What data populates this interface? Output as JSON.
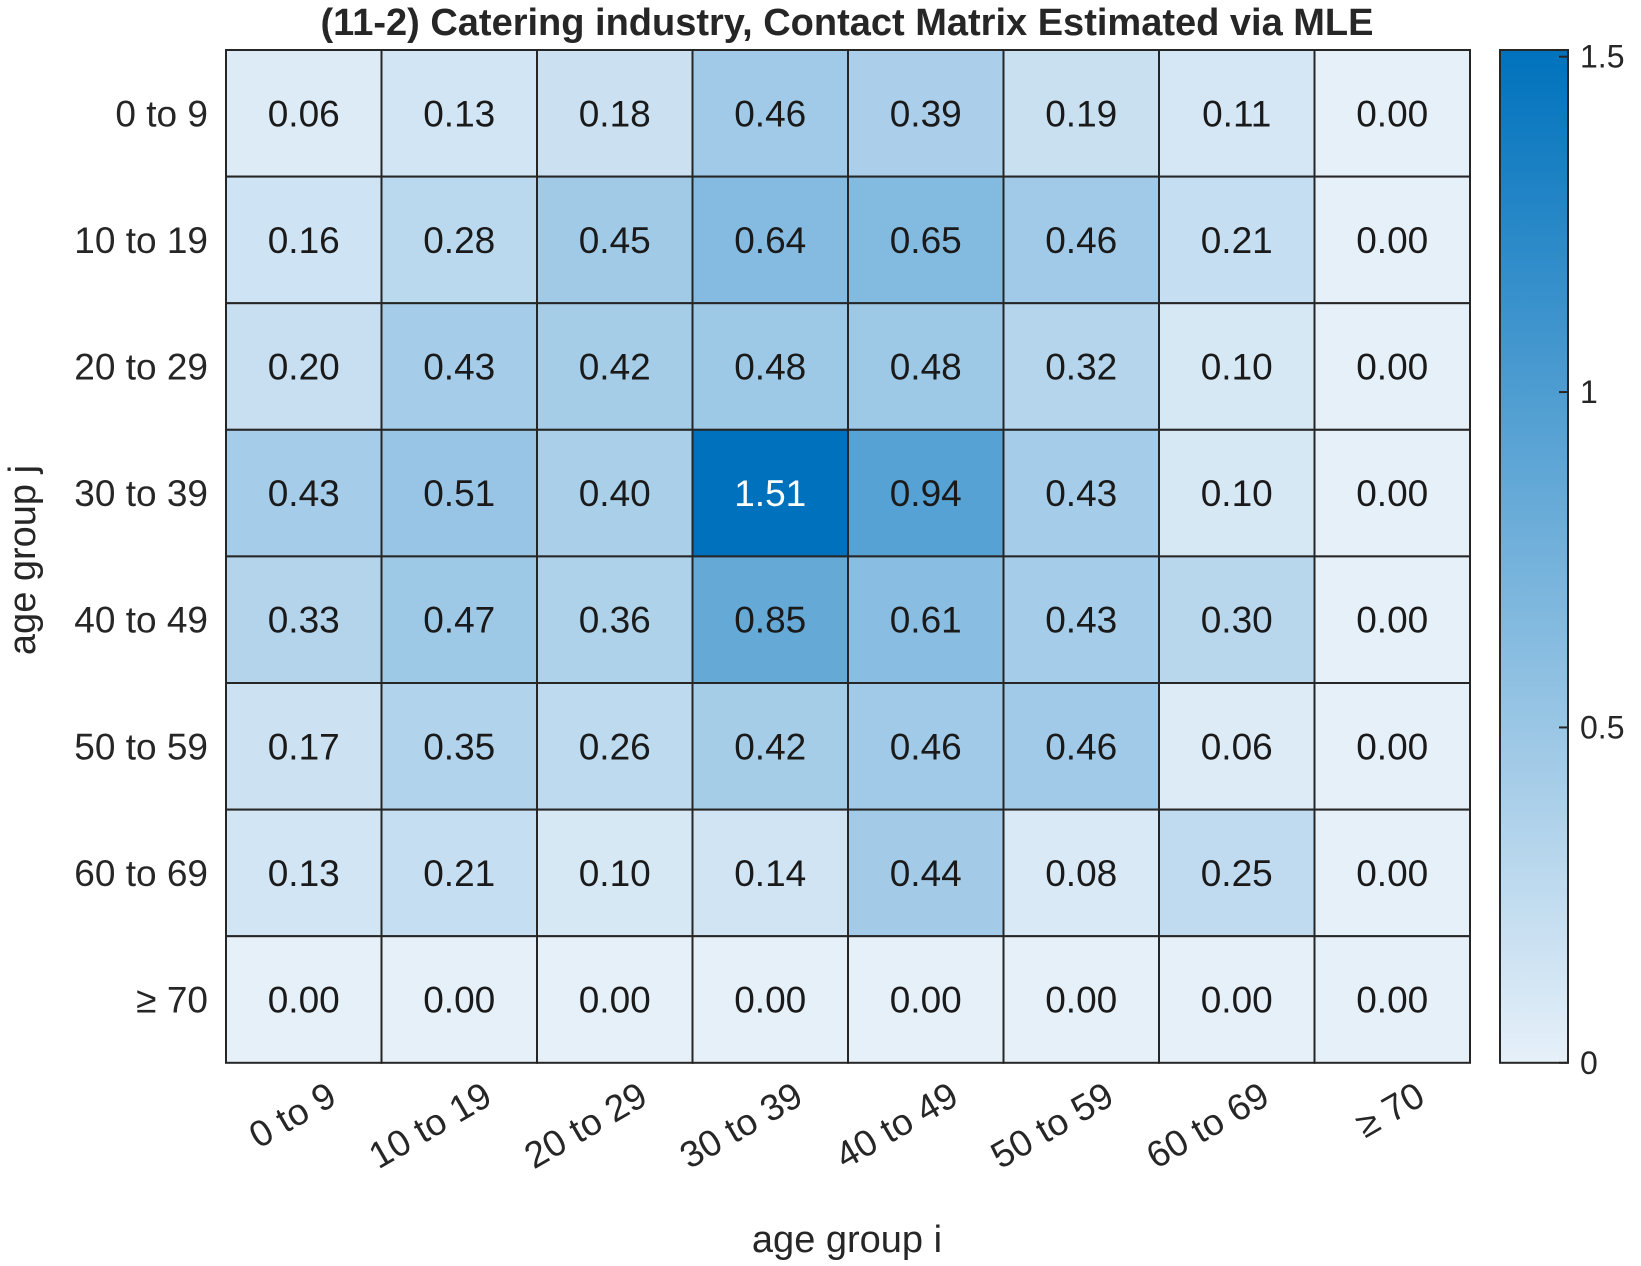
{
  "chart_data": {
    "type": "heatmap",
    "title": "(11-2) Catering industry, Contact Matrix Estimated via MLE",
    "xlabel": "age group i",
    "ylabel": "age group j",
    "x_categories": [
      "0 to 9",
      "10 to 19",
      "20 to 29",
      "30 to 39",
      "40 to 49",
      "50 to 59",
      "60 to 69",
      "≥ 70"
    ],
    "y_categories": [
      "0 to 9",
      "10 to 19",
      "20 to 29",
      "30 to 39",
      "40 to 49",
      "50 to 59",
      "60 to 69",
      "≥ 70"
    ],
    "values": [
      [
        0.06,
        0.13,
        0.18,
        0.46,
        0.39,
        0.19,
        0.11,
        0.0
      ],
      [
        0.16,
        0.28,
        0.45,
        0.64,
        0.65,
        0.46,
        0.21,
        0.0
      ],
      [
        0.2,
        0.43,
        0.42,
        0.48,
        0.48,
        0.32,
        0.1,
        0.0
      ],
      [
        0.43,
        0.51,
        0.4,
        1.51,
        0.94,
        0.43,
        0.1,
        0.0
      ],
      [
        0.33,
        0.47,
        0.36,
        0.85,
        0.61,
        0.43,
        0.3,
        0.0
      ],
      [
        0.17,
        0.35,
        0.26,
        0.42,
        0.46,
        0.46,
        0.06,
        0.0
      ],
      [
        0.13,
        0.21,
        0.1,
        0.14,
        0.44,
        0.08,
        0.25,
        0.0
      ],
      [
        0.0,
        0.0,
        0.0,
        0.0,
        0.0,
        0.0,
        0.0,
        0.0
      ]
    ],
    "value_format_decimals": 2,
    "colorbar": {
      "range": [
        0,
        1.51
      ],
      "ticks": [
        0,
        0.5,
        1,
        1.5
      ],
      "tick_labels": [
        "0",
        "0.5",
        "1",
        "1.5"
      ],
      "color_low": "#e6f0f9",
      "color_high": "#0072bd"
    },
    "cell_text_color_dark": "#1a1a1a",
    "cell_text_color_light": "#ffffff",
    "grid_line_color": "#262626",
    "legend": "none"
  }
}
